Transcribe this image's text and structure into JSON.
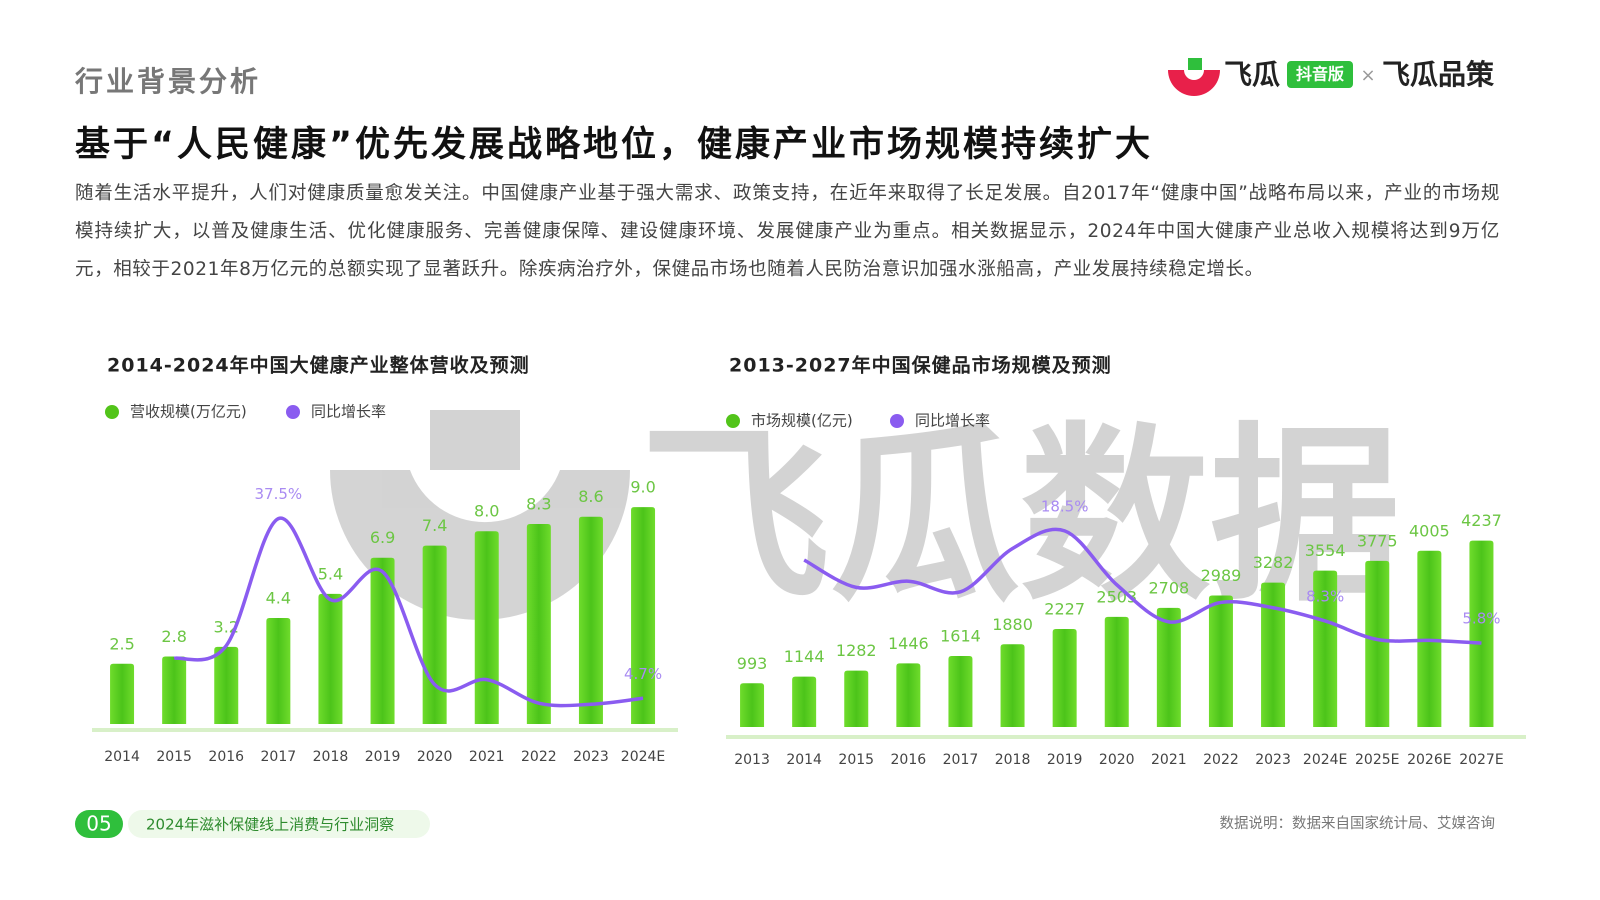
{
  "section": "行业背景分析",
  "logo": {
    "brand": "飞瓜",
    "badge": "抖音版",
    "partner": "飞瓜品策"
  },
  "title": "基于“人民健康”优先发展战略地位，健康产业市场规模持续扩大",
  "paragraph": "随着生活水平提升，人们对健康质量愈发关注。中国健康产业基于强大需求、政策支持，在近年来取得了长足发展。自2017年“健康中国”战略布局以来，产业的市场规模持续扩大，以普及健康生活、优化健康服务、完善健康保障、建设健康环境、发展健康产业为重点。相关数据显示，2024年中国大健康产业总收入规模将达到9万亿元，相较于2021年8万亿元的总额实现了显著跃升。除疾病治疗外，保健品市场也随着人民防治意识加强水涨船高，产业发展持续稳定增长。",
  "watermark": "飞瓜数据",
  "chart_data": [
    {
      "type": "bar",
      "title": "2014-2024年中国大健康产业整体营收及预测",
      "categories": [
        "2014",
        "2015",
        "2016",
        "2017",
        "2018",
        "2019",
        "2020",
        "2021",
        "2022",
        "2023",
        "2024E"
      ],
      "series": [
        {
          "name": "营收规模(万亿元)",
          "color": "#52c41a",
          "values": [
            2.5,
            2.8,
            3.2,
            4.4,
            5.4,
            6.9,
            7.4,
            8.0,
            8.3,
            8.6,
            9.0
          ],
          "value_labels": [
            "2.5",
            "2.8",
            "3.2",
            "4.4",
            "5.4",
            "6.9",
            "7.4",
            "8.0",
            "8.3",
            "8.6",
            "9.0"
          ]
        },
        {
          "name": "同比增长率",
          "color": "#8a5cf0",
          "axis": "y2",
          "values": [
            null,
            12.0,
            14.3,
            37.5,
            22.7,
            27.8,
            7.2,
            8.1,
            3.8,
            3.6,
            4.7
          ],
          "value_labels": [
            null,
            null,
            null,
            "37.5%",
            null,
            null,
            null,
            null,
            null,
            null,
            "4.7%"
          ]
        }
      ],
      "ylim": [
        0,
        10
      ],
      "y2lim": [
        0,
        44
      ]
    },
    {
      "type": "bar",
      "title": "2013-2027年中国保健品市场规模及预测",
      "categories": [
        "2013",
        "2014",
        "2015",
        "2016",
        "2017",
        "2018",
        "2019",
        "2020",
        "2021",
        "2022",
        "2023",
        "2024E",
        "2025E",
        "2026E",
        "2027E"
      ],
      "series": [
        {
          "name": "市场规模(亿元)",
          "color": "#52c41a",
          "values": [
            993,
            1144,
            1282,
            1446,
            1614,
            1880,
            2227,
            2503,
            2708,
            2989,
            3282,
            3554,
            3775,
            4005,
            4237
          ]
        },
        {
          "name": "同比增长率",
          "color": "#8a5cf0",
          "axis": "y2",
          "values": [
            null,
            15.2,
            12.1,
            12.8,
            11.6,
            16.5,
            18.5,
            12.4,
            8.2,
            10.4,
            9.8,
            8.3,
            6.2,
            6.1,
            5.8
          ],
          "value_labels": [
            null,
            null,
            null,
            null,
            null,
            null,
            "18.5%",
            null,
            null,
            null,
            null,
            "8.3%",
            null,
            null,
            "5.8%"
          ]
        }
      ],
      "ylim": [
        0,
        5000
      ],
      "y2lim": [
        -3.7,
        21.2
      ]
    }
  ],
  "footer": {
    "page": "05",
    "report": "2024年滋补保健线上消费与行业洞察",
    "source": "数据说明：数据来自国家统计局、艾媒咨询"
  }
}
